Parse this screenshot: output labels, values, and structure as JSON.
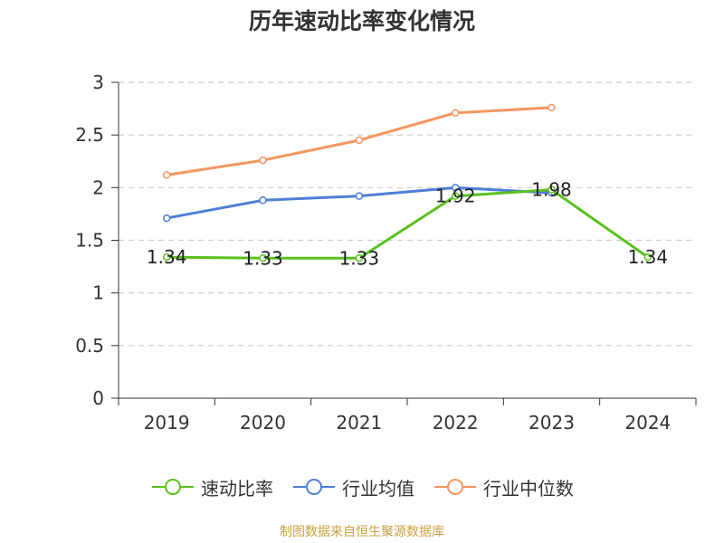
{
  "chart_data": {
    "type": "line",
    "title": "历年速动比率变化情况",
    "categories": [
      "2019",
      "2020",
      "2021",
      "2022",
      "2023",
      "2024"
    ],
    "ylim": [
      0,
      3
    ],
    "yticks": [
      0,
      0.5,
      1,
      1.5,
      2,
      2.5,
      3
    ],
    "ytick_labels": [
      "0",
      "0.5",
      "1",
      "1.5",
      "2",
      "2.5",
      "3"
    ],
    "grid": true,
    "legend_position": "bottom",
    "series": [
      {
        "name": "速动比率",
        "color": "#5bc01e",
        "values": [
          1.34,
          1.33,
          1.33,
          1.92,
          1.98,
          1.34
        ],
        "labels": [
          "1.34",
          "1.33",
          "1.33",
          "1.92",
          "1.98",
          "1.34"
        ]
      },
      {
        "name": "行业均值",
        "color": "#4f7fd6",
        "values": [
          1.71,
          1.88,
          1.92,
          2.0,
          1.95,
          null
        ]
      },
      {
        "name": "行业中位数",
        "color": "#f59560",
        "values": [
          2.12,
          2.26,
          2.45,
          2.71,
          2.76,
          null
        ]
      }
    ],
    "source": "制图数据来自恒生聚源数据库"
  }
}
